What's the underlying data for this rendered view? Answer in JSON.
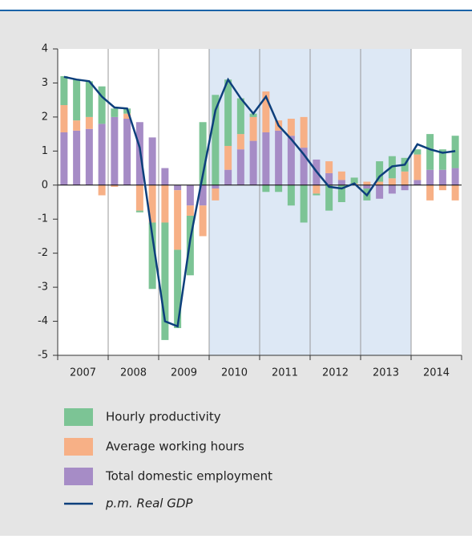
{
  "chart_data": {
    "type": "stacked-bar-line",
    "categories": [
      null,
      null,
      null,
      null,
      null,
      null,
      null,
      null,
      null,
      null,
      null,
      null,
      null,
      null,
      null,
      null,
      null,
      null,
      null,
      null,
      null,
      null,
      null,
      null,
      null,
      null,
      null,
      null,
      null,
      null,
      null,
      null
    ],
    "year_labels": [
      "2007",
      "2008",
      "2009",
      "2010",
      "2011",
      "2012",
      "2013",
      "2014"
    ],
    "shade": [
      12,
      28
    ],
    "series": [
      {
        "name": "Hourly productivity",
        "color": "#7cc495",
        "values": [
          0.85,
          1.2,
          1.05,
          1.1,
          0.25,
          0.15,
          -0.05,
          -1.95,
          -3.45,
          -2.3,
          -1.75,
          1.85,
          2.65,
          1.95,
          1.05,
          0.1,
          -0.2,
          -0.2,
          -0.6,
          -1.1,
          -0.05,
          -0.75,
          -0.5,
          0.17,
          -0.35,
          0.6,
          0.65,
          0.4,
          0.15,
          1.05,
          0.6,
          0.95
        ]
      },
      {
        "name": "Average working hours",
        "color": "#f7b086",
        "values": [
          0.8,
          0.3,
          0.35,
          -0.3,
          -0.05,
          0.15,
          -0.75,
          -1.1,
          -1.1,
          -1.75,
          -0.3,
          -0.9,
          -0.35,
          0.7,
          0.45,
          0.7,
          1.2,
          0.3,
          0.5,
          0.9,
          -0.25,
          0.35,
          0.25,
          0.05,
          0.1,
          0.1,
          0.2,
          0.4,
          0.75,
          -0.45,
          -0.15,
          -0.45
        ]
      },
      {
        "name": "Total domestic employment",
        "color": "#a68cc6",
        "values": [
          1.55,
          1.6,
          1.65,
          1.8,
          2.0,
          1.95,
          1.85,
          1.4,
          0.5,
          -0.15,
          -0.6,
          -0.6,
          -0.1,
          0.45,
          1.05,
          1.3,
          1.55,
          1.6,
          1.45,
          1.1,
          0.75,
          0.35,
          0.15,
          0.0,
          -0.1,
          -0.4,
          -0.25,
          -0.15,
          0.15,
          0.45,
          0.45,
          0.5
        ]
      }
    ],
    "line": {
      "name": "p.m. Real GDP",
      "color": "#0d3f7c",
      "values": [
        3.18,
        3.1,
        3.05,
        2.6,
        2.28,
        2.25,
        1.1,
        -1.5,
        -4.0,
        -4.15,
        -1.6,
        0.3,
        2.2,
        3.1,
        2.55,
        2.1,
        2.6,
        1.75,
        1.35,
        0.9,
        0.4,
        -0.05,
        -0.1,
        0.05,
        -0.3,
        0.25,
        0.55,
        0.6,
        1.2,
        1.05,
        0.95,
        1.0
      ]
    },
    "ylim": [
      -5,
      4
    ],
    "yticks": [
      -5,
      -4,
      -3,
      -2,
      -1,
      0,
      1,
      2,
      3,
      4
    ]
  }
}
